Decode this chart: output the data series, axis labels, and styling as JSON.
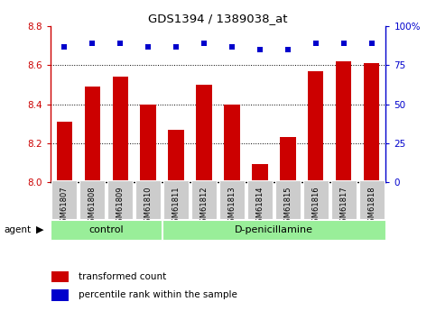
{
  "title": "GDS1394 / 1389038_at",
  "categories": [
    "GSM61807",
    "GSM61808",
    "GSM61809",
    "GSM61810",
    "GSM61811",
    "GSM61812",
    "GSM61813",
    "GSM61814",
    "GSM61815",
    "GSM61816",
    "GSM61817",
    "GSM61818"
  ],
  "bar_values": [
    8.31,
    8.49,
    8.54,
    8.4,
    8.27,
    8.5,
    8.4,
    8.09,
    8.23,
    8.57,
    8.62,
    8.61
  ],
  "percentile_values": [
    87,
    89,
    89,
    87,
    87,
    89,
    87,
    85,
    85,
    89,
    89,
    89
  ],
  "bar_color": "#cc0000",
  "dot_color": "#0000cc",
  "ylim_left": [
    8.0,
    8.8
  ],
  "ylim_right": [
    0,
    100
  ],
  "yticks_left": [
    8.0,
    8.2,
    8.4,
    8.6,
    8.8
  ],
  "yticks_right": [
    0,
    25,
    50,
    75,
    100
  ],
  "grid_values": [
    8.2,
    8.4,
    8.6
  ],
  "groups": [
    {
      "label": "control",
      "start": 0,
      "end": 4
    },
    {
      "label": "D-penicillamine",
      "start": 4,
      "end": 12
    }
  ],
  "group_bg_color": "#99ee99",
  "tick_bg_color": "#cccccc",
  "agent_label": "agent",
  "legend": [
    {
      "label": "transformed count",
      "color": "#cc0000"
    },
    {
      "label": "percentile rank within the sample",
      "color": "#0000cc"
    }
  ],
  "figure_bg": "#ffffff",
  "fig_width": 4.83,
  "fig_height": 3.45,
  "dpi": 100
}
